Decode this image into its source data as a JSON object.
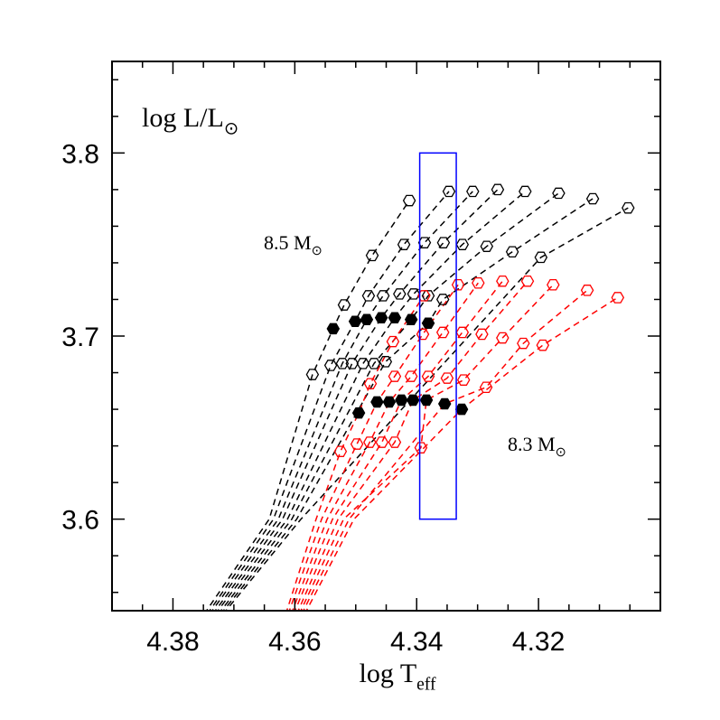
{
  "chart_data": {
    "type": "line",
    "xlim": [
      4.39,
      4.3
    ],
    "ylim": [
      3.55,
      3.85
    ],
    "xticks": [
      4.38,
      4.36,
      4.34,
      4.32
    ],
    "yticks": [
      3.6,
      3.7,
      3.8
    ],
    "xminorticks": [
      4.385,
      4.375,
      4.37,
      4.365,
      4.355,
      4.35,
      4.345,
      4.335,
      4.33,
      4.325,
      4.315,
      4.31,
      4.305
    ],
    "yminorticks": [
      3.56,
      3.58,
      3.62,
      3.64,
      3.66,
      3.68,
      3.72,
      3.74,
      3.76,
      3.78,
      3.82,
      3.84
    ],
    "xlabel": {
      "text": "log T",
      "sub": "eff"
    },
    "annotations": [
      {
        "text": "log L/L",
        "sub": "⊙",
        "color": "#000000"
      },
      {
        "text": "8.5 M",
        "sub": "⊙",
        "color": "#000000"
      },
      {
        "text": "8.3 M",
        "sub": "⊙",
        "color": "#ff0000"
      }
    ],
    "box": {
      "x": [
        4.3395,
        4.3335
      ],
      "y": [
        3.6,
        3.8
      ],
      "color": "#0000ff"
    },
    "filled_color": "#000000",
    "series": [
      {
        "color": "#000000",
        "x": [
          4.3749,
          4.3642,
          4.3571,
          4.3537,
          4.3519,
          4.3473,
          4.3412
        ],
        "y": [
          3.548,
          3.6,
          3.679,
          3.704,
          3.717,
          3.744,
          3.774
        ],
        "markers": [
          null,
          null,
          "open",
          "filled",
          "open",
          "open",
          "open"
        ]
      },
      {
        "color": "#000000",
        "x": [
          4.3744,
          4.3635,
          4.3541,
          4.3501,
          4.3479,
          4.3421,
          4.3347
        ],
        "y": [
          3.548,
          3.6,
          3.684,
          3.708,
          3.722,
          3.75,
          3.779
        ],
        "markers": [
          null,
          null,
          "open",
          "filled",
          "open",
          "open",
          "open"
        ]
      },
      {
        "color": "#000000",
        "x": [
          4.374,
          4.3627,
          4.3522,
          4.3482,
          4.3455,
          4.3387,
          4.3308
        ],
        "y": [
          3.548,
          3.6,
          3.685,
          3.709,
          3.722,
          3.751,
          3.779
        ],
        "markers": [
          null,
          null,
          "open",
          "filled",
          "open",
          "open",
          "open"
        ]
      },
      {
        "color": "#000000",
        "x": [
          4.3735,
          4.362,
          4.3506,
          4.3458,
          4.3428,
          4.3356,
          4.3267
        ],
        "y": [
          3.548,
          3.6,
          3.685,
          3.71,
          3.723,
          3.751,
          3.78
        ],
        "markers": [
          null,
          null,
          "open",
          "filled",
          "open",
          "open",
          "open"
        ]
      },
      {
        "color": "#000000",
        "x": [
          4.3731,
          4.3612,
          4.3488,
          4.3436,
          4.3405,
          4.3325,
          4.3222
        ],
        "y": [
          3.548,
          3.6,
          3.685,
          3.71,
          3.723,
          3.75,
          3.779
        ],
        "markers": [
          null,
          null,
          "open",
          "filled",
          "open",
          "open",
          "open"
        ]
      },
      {
        "color": "#000000",
        "x": [
          4.3726,
          4.3605,
          4.347,
          4.3409,
          4.3381,
          4.3285,
          4.3167
        ],
        "y": [
          3.548,
          3.6,
          3.685,
          3.709,
          3.722,
          3.749,
          3.778
        ],
        "markers": [
          null,
          null,
          "open",
          "filled",
          "open",
          "open",
          "open"
        ]
      },
      {
        "color": "#000000",
        "x": [
          4.3722,
          4.3597,
          4.3451,
          4.3381,
          4.3357,
          4.3243,
          4.3111
        ],
        "y": [
          3.548,
          3.6,
          3.686,
          3.707,
          3.72,
          3.746,
          3.775
        ],
        "markers": [
          null,
          null,
          "open",
          "filled",
          "open",
          "open",
          "open"
        ]
      },
      {
        "color": "#000000",
        "x": [
          4.3718,
          4.359,
          4.3196,
          4.3053
        ],
        "y": [
          3.548,
          3.6,
          3.743,
          3.77
        ],
        "markers": [
          null,
          null,
          "open",
          "open"
        ]
      },
      {
        "color": "#ff0000",
        "x": [
          4.3615,
          4.3565,
          4.3525,
          4.3495,
          4.3476,
          4.3439,
          4.3388
        ],
        "y": [
          3.548,
          3.6,
          3.637,
          3.658,
          3.674,
          3.697,
          3.722
        ],
        "markers": [
          null,
          null,
          "open",
          "filled",
          "open",
          "open",
          "open"
        ]
      },
      {
        "color": "#ff0000",
        "x": [
          4.3611,
          4.3556,
          4.3498,
          4.3465,
          4.3436,
          4.339,
          4.3332
        ],
        "y": [
          3.548,
          3.6,
          3.641,
          3.664,
          3.678,
          3.701,
          3.728
        ],
        "markers": [
          null,
          null,
          "open",
          "filled",
          "open",
          "open",
          "open"
        ]
      },
      {
        "color": "#ff0000",
        "x": [
          4.3606,
          4.3547,
          4.3477,
          4.3445,
          4.3409,
          4.3357,
          4.3299
        ],
        "y": [
          3.548,
          3.6,
          3.642,
          3.664,
          3.678,
          3.702,
          3.729
        ],
        "markers": [
          null,
          null,
          "open",
          "filled",
          "open",
          "open",
          "open"
        ]
      },
      {
        "color": "#ff0000",
        "x": [
          4.3602,
          4.3538,
          4.3457,
          4.3425,
          4.3381,
          4.3325,
          4.3259
        ],
        "y": [
          3.548,
          3.6,
          3.642,
          3.665,
          3.678,
          3.702,
          3.73
        ],
        "markers": [
          null,
          null,
          "open",
          "filled",
          "open",
          "open",
          "open"
        ]
      },
      {
        "color": "#ff0000",
        "x": [
          4.3597,
          4.3529,
          4.3436,
          4.3406,
          4.335,
          4.3293,
          4.3218
        ],
        "y": [
          3.548,
          3.6,
          3.642,
          3.665,
          3.677,
          3.701,
          3.73
        ],
        "markers": [
          null,
          null,
          "open",
          "filled",
          "open",
          "open",
          "open"
        ]
      },
      {
        "color": "#ff0000",
        "x": [
          4.3593,
          4.352,
          4.3393,
          4.3384,
          4.3323,
          4.3259,
          4.3176
        ],
        "y": [
          3.548,
          3.6,
          3.639,
          3.665,
          3.676,
          3.699,
          3.728
        ],
        "markers": [
          null,
          null,
          "open",
          "filled",
          "open",
          "open",
          "open"
        ]
      },
      {
        "color": "#ff0000",
        "x": [
          4.3589,
          4.3511,
          4.3354,
          4.3286,
          4.3225,
          4.312
        ],
        "y": [
          3.548,
          3.6,
          3.663,
          3.672,
          3.696,
          3.725
        ],
        "markers": [
          null,
          null,
          "filled",
          "open",
          "open",
          "open"
        ]
      },
      {
        "color": "#ff0000",
        "x": [
          4.3584,
          4.3503,
          4.3326,
          4.3193,
          4.307
        ],
        "y": [
          3.548,
          3.6,
          3.66,
          3.695,
          3.721
        ],
        "markers": [
          null,
          null,
          "filled",
          "open",
          "open"
        ]
      }
    ]
  }
}
